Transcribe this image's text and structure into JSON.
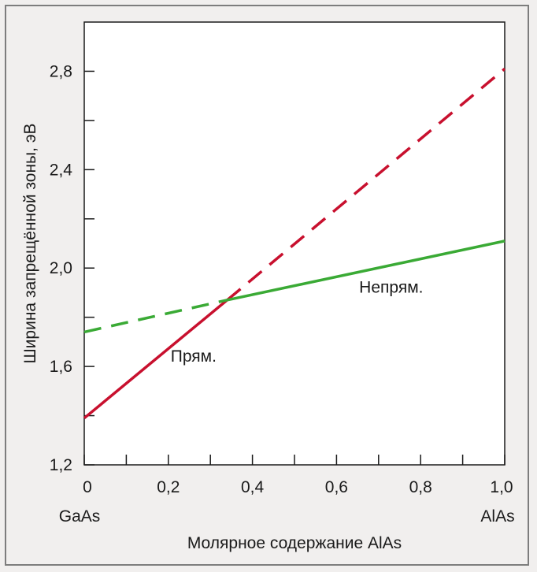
{
  "chart_data": {
    "type": "line",
    "xlabel": "Молярное содержание AlAs",
    "ylabel": "Ширина запрещённой зоны, эВ",
    "xlim": [
      0,
      1.0
    ],
    "ylim": [
      1.2,
      3.0
    ],
    "x_ticks": [
      {
        "value": 0,
        "label": "0"
      },
      {
        "value": 0.2,
        "label": "0,2"
      },
      {
        "value": 0.4,
        "label": "0,4"
      },
      {
        "value": 0.6,
        "label": "0,6"
      },
      {
        "value": 0.8,
        "label": "0,8"
      },
      {
        "value": 1.0,
        "label": "1,0"
      }
    ],
    "x_minor_ticks": [
      0.1,
      0.3,
      0.5,
      0.7,
      0.9
    ],
    "y_ticks": [
      {
        "value": 1.2,
        "label": "1,2"
      },
      {
        "value": 1.6,
        "label": "1,6"
      },
      {
        "value": 2.0,
        "label": "2,0"
      },
      {
        "value": 2.4,
        "label": "2,4"
      },
      {
        "value": 2.8,
        "label": "2,8"
      }
    ],
    "y_minor_ticks": [
      1.4,
      1.8,
      2.2,
      2.6
    ],
    "end_labels": {
      "left": "GaAs",
      "right": "AlAs"
    },
    "grid": false,
    "series": [
      {
        "name": "Прям.",
        "color": "#c8102e",
        "segments": [
          {
            "style": "solid",
            "x": [
              0,
              0.34
            ],
            "y": [
              1.39,
              1.87
            ]
          },
          {
            "style": "dashed",
            "x": [
              0.34,
              1.0
            ],
            "y": [
              1.87,
              2.81
            ]
          }
        ]
      },
      {
        "name": "Непрям.",
        "color": "#3aaa35",
        "segments": [
          {
            "style": "dashed",
            "x": [
              0,
              0.34
            ],
            "y": [
              1.74,
              1.87
            ]
          },
          {
            "style": "solid",
            "x": [
              0.34,
              1.0
            ],
            "y": [
              1.87,
              2.11
            ]
          }
        ]
      }
    ],
    "annotations": [
      {
        "text": "Прям.",
        "x": 0.26,
        "y": 1.62
      },
      {
        "text": "Непрям.",
        "x": 0.73,
        "y": 1.9
      }
    ]
  }
}
